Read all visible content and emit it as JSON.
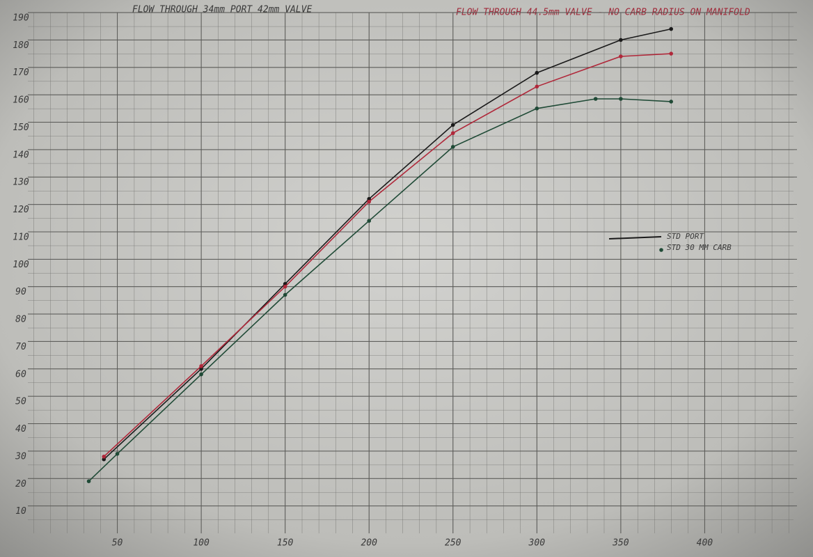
{
  "chart_data": {
    "type": "line",
    "title": "FLOW THROUGH 34mm PORT 42mm VALVE",
    "subtitle": "FLOW THROUGH 44.5mm VALVE - NO CARB RADIUS ON MANIFOLD",
    "series": [
      {
        "name": "STD PORT",
        "color": "#1a1a1a",
        "x": [
          42,
          100,
          150,
          200,
          250,
          300,
          350,
          380
        ],
        "values": [
          27,
          60,
          91,
          122,
          149,
          168,
          180,
          184
        ]
      },
      {
        "color": "#b0283a",
        "x": [
          42,
          100,
          150,
          200,
          250,
          300,
          350,
          380
        ],
        "values": [
          28,
          61,
          90,
          121,
          146,
          163,
          174,
          175
        ]
      },
      {
        "name": "STD 30 MM CARB",
        "color": "#1f4a36",
        "x": [
          33,
          50,
          100,
          150,
          200,
          250,
          300,
          335,
          350,
          380
        ],
        "values": [
          19,
          29,
          58,
          87,
          114,
          141,
          155,
          158.5,
          158.5,
          157.5
        ]
      }
    ],
    "xlim": [
      0,
      455
    ],
    "xticks": [
      50,
      100,
      150,
      200,
      250,
      300,
      350,
      400
    ],
    "ylim": [
      0,
      190
    ],
    "yticks": [
      10,
      20,
      30,
      40,
      50,
      60,
      70,
      80,
      90,
      100,
      110,
      120,
      130,
      140,
      150,
      160,
      170,
      180,
      190
    ],
    "grid": true
  }
}
